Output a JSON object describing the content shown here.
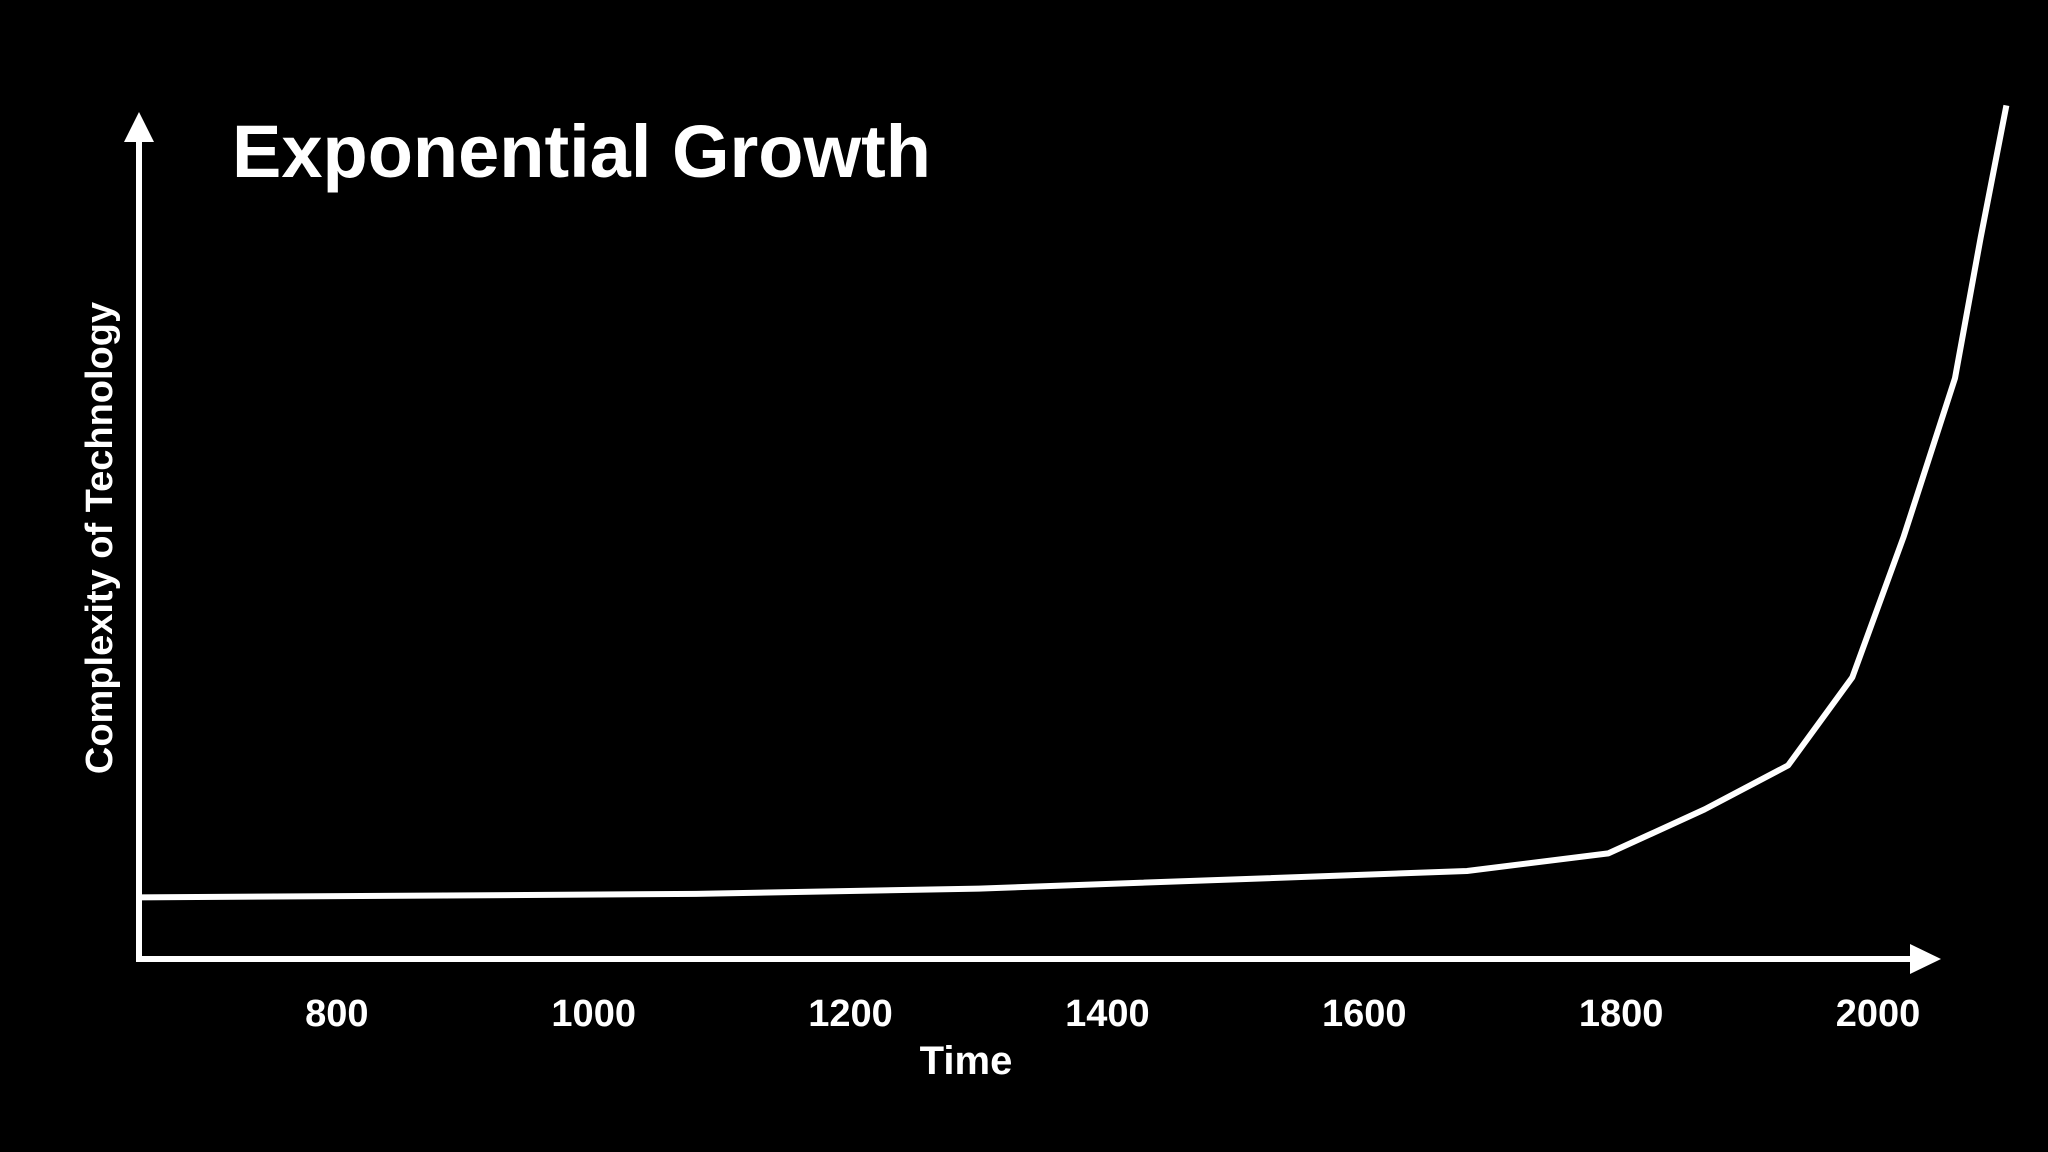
{
  "colors": {
    "background": "#000000",
    "foreground": "#ffffff"
  },
  "chart_data": {
    "type": "line",
    "title": "Exponential Growth",
    "xlabel": "Time",
    "ylabel": "Complexity of Technology",
    "xlim": [
      646,
      2095
    ],
    "ylim": [
      0,
      100
    ],
    "grid": false,
    "legend": "none",
    "x_ticks": [
      800,
      1000,
      1200,
      1400,
      1600,
      1800,
      2000
    ],
    "tick_labels": [
      "800",
      "1000",
      "1200",
      "1400",
      "1600",
      "1800",
      "2000"
    ],
    "y_ticks_shown": false,
    "series": [
      {
        "x": [
          646,
          1080,
          1300,
          1680,
          1790,
          1865,
          1930,
          1980,
          2020,
          2060,
          2080,
          2100
        ],
        "y": [
          7,
          7.4,
          8,
          10,
          12,
          17,
          22,
          32,
          48,
          66,
          82,
          97
        ]
      }
    ]
  }
}
